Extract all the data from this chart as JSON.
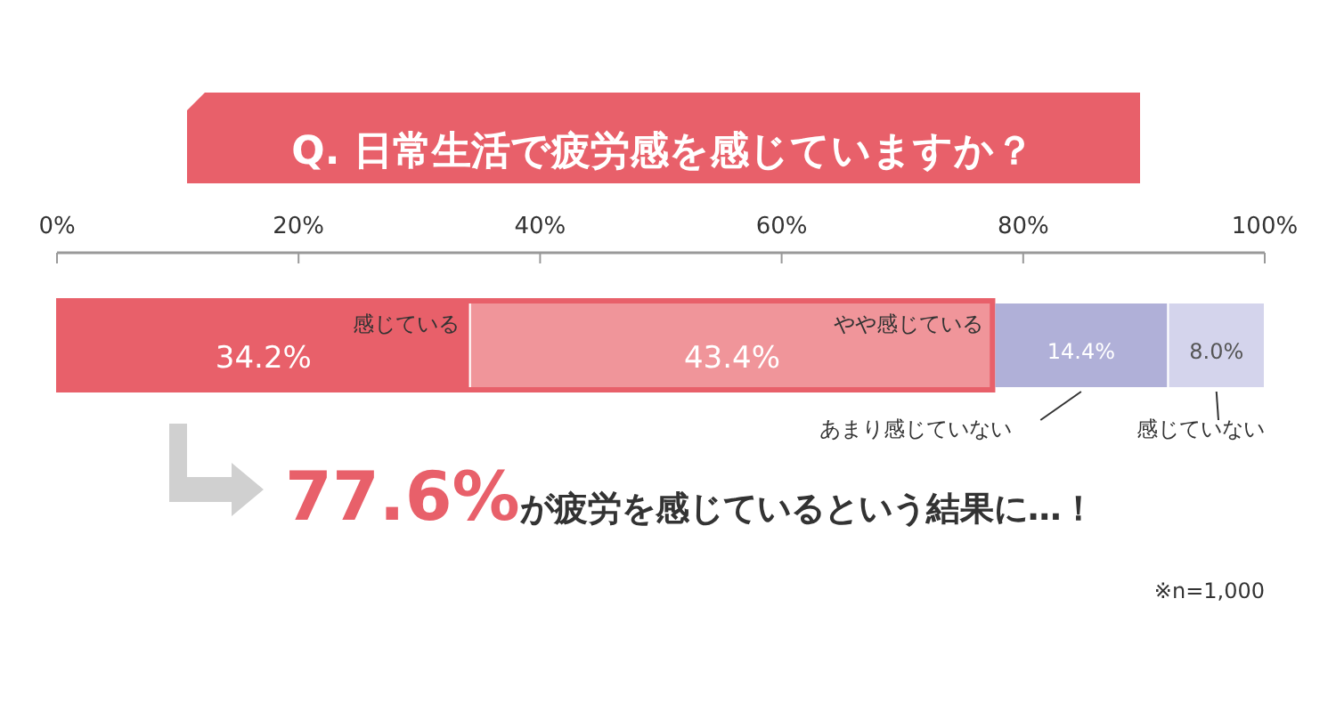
{
  "chart_data": {
    "type": "bar",
    "orientation": "horizontal",
    "stacked": true,
    "title": "Q. 日常生活で疲労感を感じていますか？",
    "categories": [
      null
    ],
    "series": [
      {
        "name": "感じている",
        "color": "#e8606a",
        "values": [
          34.2
        ],
        "value_labels": [
          "34.2%"
        ]
      },
      {
        "name": "やや感じている",
        "color": "#f0959a",
        "values": [
          43.4
        ],
        "value_labels": [
          "43.4%"
        ]
      },
      {
        "name": "あまり感じていない",
        "color": "#b0b0d8",
        "values": [
          14.4
        ],
        "value_labels": [
          "14.4%"
        ]
      },
      {
        "name": "感じていない",
        "color": "#d4d4ec",
        "values": [
          8.0
        ],
        "value_labels": [
          "8.0%"
        ]
      }
    ],
    "xlim": [
      0,
      100
    ],
    "xticks": [
      {
        "value": 0,
        "label": "0%"
      },
      {
        "value": 20,
        "label": "20%"
      },
      {
        "value": 40,
        "label": "40%"
      },
      {
        "value": 60,
        "label": "60%"
      },
      {
        "value": 80,
        "label": "80%"
      },
      {
        "value": 100,
        "label": "100%"
      }
    ],
    "annotations": [
      "77.6%が疲労を感じているという結果に…！",
      "※n=1,000"
    ]
  }
}
